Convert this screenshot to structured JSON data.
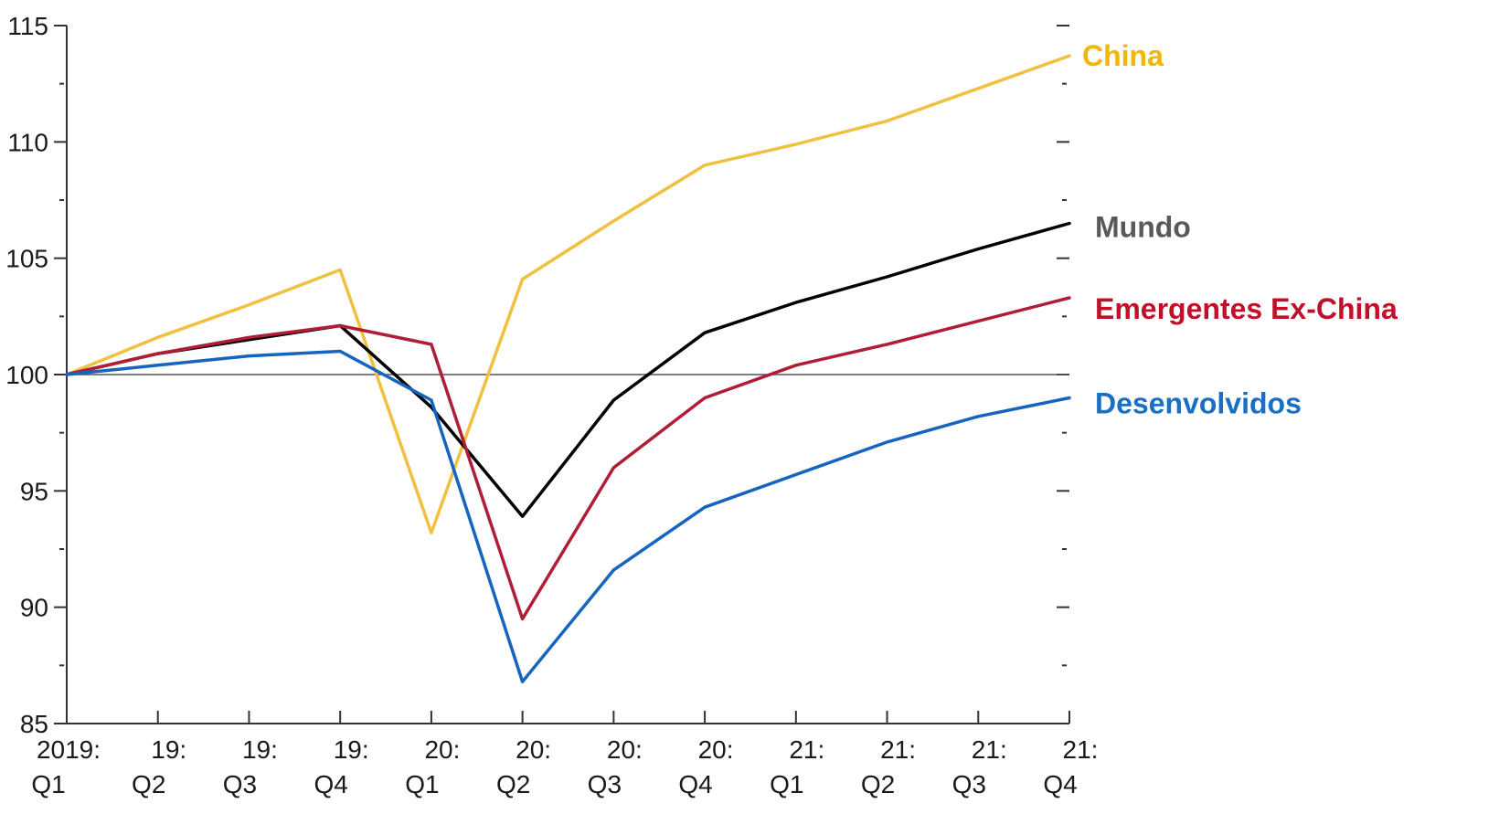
{
  "colors": {
    "axis": "#333333",
    "baseline": "#555555"
  },
  "chart_data": {
    "type": "line",
    "categories": [
      "2019:\nQ1",
      "19:\nQ2",
      "19:\nQ3",
      "19:\nQ4",
      "20:\nQ1",
      "20:\nQ2",
      "20:\nQ3",
      "20:\nQ4",
      "21:\nQ1",
      "21:\nQ2",
      "21:\nQ3",
      "21:\nQ4"
    ],
    "category_lines": [
      [
        "2019:",
        "Q1"
      ],
      [
        "19:",
        "Q2"
      ],
      [
        "19:",
        "Q3"
      ],
      [
        "19:",
        "Q4"
      ],
      [
        "20:",
        "Q1"
      ],
      [
        "20:",
        "Q2"
      ],
      [
        "20:",
        "Q3"
      ],
      [
        "20:",
        "Q4"
      ],
      [
        "21:",
        "Q1"
      ],
      [
        "21:",
        "Q2"
      ],
      [
        "21:",
        "Q3"
      ],
      [
        "21:",
        "Q4"
      ]
    ],
    "ylim": [
      85,
      115
    ],
    "yticks": [
      85,
      90,
      95,
      100,
      105,
      110,
      115
    ],
    "yminor": [
      87.5,
      92.5,
      97.5,
      102.5,
      107.5,
      112.5
    ],
    "reference_line": 100,
    "series": [
      {
        "name": "China",
        "color": "#f0c040",
        "label_color": "#f2b705",
        "values": [
          100,
          101.6,
          103.0,
          104.5,
          93.2,
          104.1,
          106.6,
          109.0,
          109.9,
          110.9,
          112.3,
          113.7
        ]
      },
      {
        "name": "Mundo",
        "color": "#000000",
        "label_color": "#595959",
        "values": [
          100,
          100.9,
          101.5,
          102.1,
          98.6,
          93.9,
          98.9,
          101.8,
          103.1,
          104.2,
          105.4,
          106.5
        ]
      },
      {
        "name": "Emergentes Ex-China",
        "color": "#b01e36",
        "label_color": "#c0102a",
        "values": [
          100,
          100.9,
          101.6,
          102.1,
          101.3,
          89.5,
          96.0,
          99.0,
          100.4,
          101.3,
          102.3,
          103.3
        ]
      },
      {
        "name": "Desenvolvidos",
        "color": "#1565c0",
        "label_color": "#1a6fc4",
        "values": [
          100,
          100.4,
          100.8,
          101.0,
          98.9,
          86.8,
          91.6,
          94.3,
          95.7,
          97.1,
          98.2,
          99.0
        ]
      }
    ]
  }
}
